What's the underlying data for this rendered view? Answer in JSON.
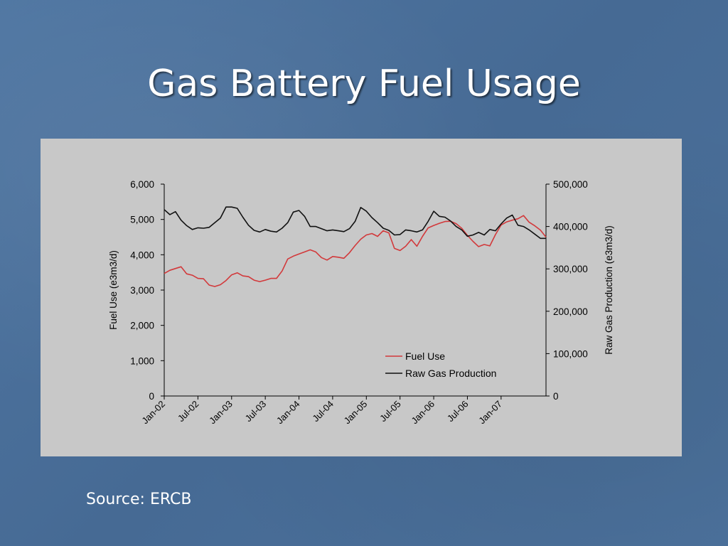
{
  "slide": {
    "title": "Gas Battery Fuel Usage",
    "source": "Source: ERCB"
  },
  "colors": {
    "background": "#4a6f99",
    "panel": "#c8c8c8",
    "fuel_use": "#d2393b",
    "raw_gas": "#111111"
  },
  "chart_data": {
    "type": "line",
    "title": "",
    "ylabel": "Fuel Use (e3m3/d)",
    "y2label": "Raw Gas Production (e3m3/d)",
    "ylim": [
      0,
      6000
    ],
    "y2lim": [
      0,
      500000
    ],
    "yticks": [
      "6,000",
      "5,000",
      "4,000",
      "3,000",
      "2,000",
      "1,000",
      "0"
    ],
    "y2ticks": [
      "500,000",
      "400,000",
      "300,000",
      "200,000",
      "100,000",
      "0"
    ],
    "xtick_labels": [
      "Jan-02",
      "Jul-02",
      "Jan-03",
      "Jul-03",
      "Jan-04",
      "Jul-04",
      "Jan-05",
      "Jul-05",
      "Jan-06",
      "Jul-06",
      "Jan-07"
    ],
    "x_start": "Jan-02",
    "x_end": "Dec-07",
    "legend_position": "lower-right",
    "series": [
      {
        "name": "Fuel Use",
        "axis": "left",
        "values": [
          3470,
          3560,
          3610,
          3660,
          3460,
          3420,
          3330,
          3320,
          3140,
          3100,
          3150,
          3270,
          3430,
          3490,
          3400,
          3380,
          3280,
          3240,
          3280,
          3330,
          3330,
          3540,
          3880,
          3960,
          4020,
          4080,
          4140,
          4080,
          3920,
          3850,
          3950,
          3930,
          3900,
          4060,
          4260,
          4440,
          4560,
          4600,
          4520,
          4680,
          4620,
          4180,
          4120,
          4240,
          4430,
          4240,
          4520,
          4760,
          4830,
          4890,
          4940,
          4950,
          4880,
          4750,
          4550,
          4380,
          4230,
          4290,
          4250,
          4570,
          4840,
          4930,
          4980,
          5020,
          5110,
          4920,
          4820,
          4700,
          4500
        ]
      },
      {
        "name": "Raw Gas Production",
        "axis": "right",
        "values": [
          440000,
          428000,
          435000,
          415000,
          402000,
          393000,
          397000,
          396000,
          398000,
          409000,
          420000,
          446000,
          446000,
          443000,
          422000,
          403000,
          391000,
          387000,
          393000,
          389000,
          387000,
          396000,
          409000,
          434000,
          438000,
          424000,
          400000,
          400000,
          395000,
          390000,
          392000,
          390000,
          388000,
          395000,
          412000,
          445000,
          436000,
          421000,
          409000,
          396000,
          391000,
          380000,
          381000,
          392000,
          390000,
          387000,
          392000,
          412000,
          436000,
          424000,
          422000,
          413000,
          400000,
          392000,
          377000,
          380000,
          386000,
          380000,
          393000,
          390000,
          406000,
          420000,
          427000,
          403000,
          400000,
          392000,
          382000,
          372000,
          372000
        ]
      }
    ]
  }
}
